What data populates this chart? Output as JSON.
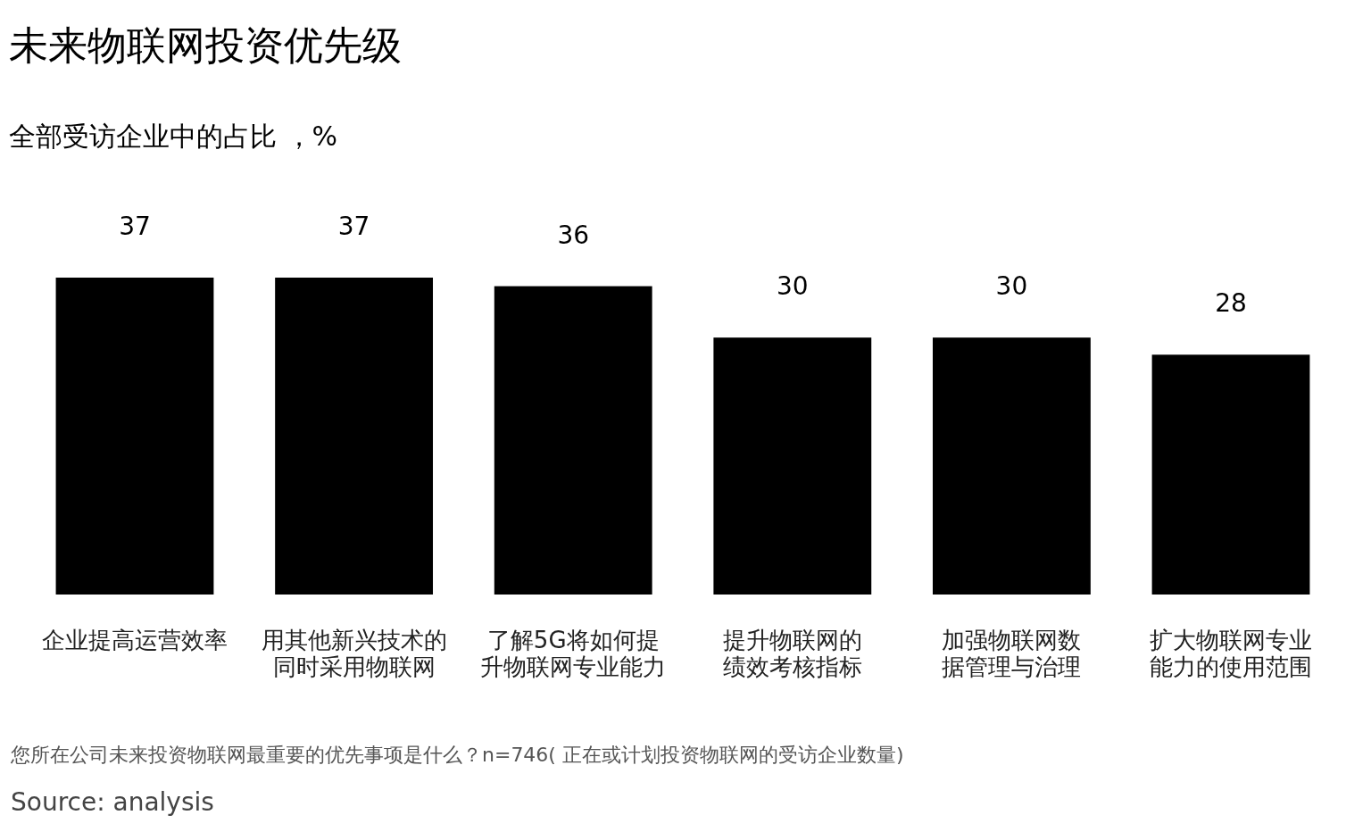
{
  "chart_data": {
    "type": "bar",
    "title": "未来物联网投资优先级",
    "subtitle": "全部受访企业中的占比 ，%",
    "categories": [
      "企业提高运营效率",
      "用其他新兴技术的同时采用物联网",
      "了解5G将如何提升物联网专业能力",
      "提升物联网的绩效考核指标",
      "加强物联网数据管理与治理",
      "扩大物联网专业能力的使用范围"
    ],
    "values": [
      37,
      37,
      36,
      30,
      30,
      28
    ],
    "color": "#000000",
    "data_labels": true,
    "annotations": [
      "您所在公司未来投资物联网最重要的优先事项是什么？n=746( 正在或计划投资物联网的受访企业数量)",
      "Source: analysis"
    ]
  }
}
